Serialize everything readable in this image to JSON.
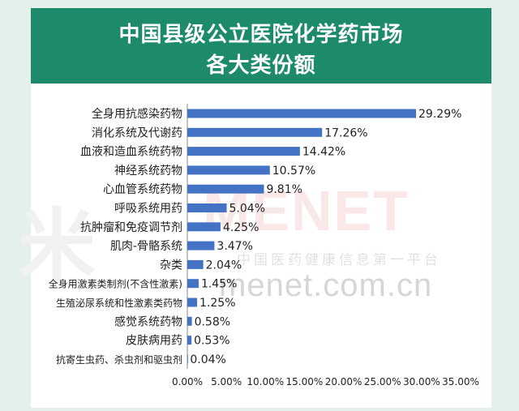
{
  "header": {
    "title_line1": "中国县级公立医院化学药市场",
    "title_line2": "各大类份额"
  },
  "watermark": {
    "logo_text": "米",
    "brand": "MENET",
    "subtitle": "中国医药健康信息第一平台",
    "url": "menet.com.cn"
  },
  "colors": {
    "background": "#e3f1ea",
    "header": "#1d8a6c",
    "bar": "#4472c4"
  },
  "chart_data": {
    "type": "bar",
    "orientation": "horizontal",
    "categories": [
      "全身用抗感染药物",
      "消化系统及代谢药",
      "血液和造血系统药物",
      "神经系统药物",
      "心血管系统药物",
      "呼吸系统用药",
      "抗肿瘤和免疫调节剂",
      "肌肉-骨骼系统",
      "杂类",
      "全身用激素类制剂(不含性激素)",
      "生殖泌尿系统和性激素类药物",
      "感觉系统药物",
      "皮肤病用药",
      "抗寄生虫药、杀虫剂和驱虫剂"
    ],
    "values": [
      29.29,
      17.26,
      14.42,
      10.57,
      9.81,
      5.04,
      4.25,
      3.47,
      2.04,
      1.45,
      1.25,
      0.58,
      0.53,
      0.04
    ],
    "value_labels": [
      "29.29%",
      "17.26%",
      "14.42%",
      "10.57%",
      "9.81%",
      "5.04%",
      "4.25%",
      "3.47%",
      "2.04%",
      "1.45%",
      "1.25%",
      "0.58%",
      "0.53%",
      "0.04%"
    ],
    "x_ticks": [
      "0.00%",
      "5.00%",
      "10.00%",
      "15.00%",
      "20.00%",
      "25.00%",
      "30.00%",
      "35.00%"
    ],
    "xlim": [
      0,
      35
    ],
    "grid": false,
    "title": "中国县级公立医院化学药市场各大类份额"
  }
}
